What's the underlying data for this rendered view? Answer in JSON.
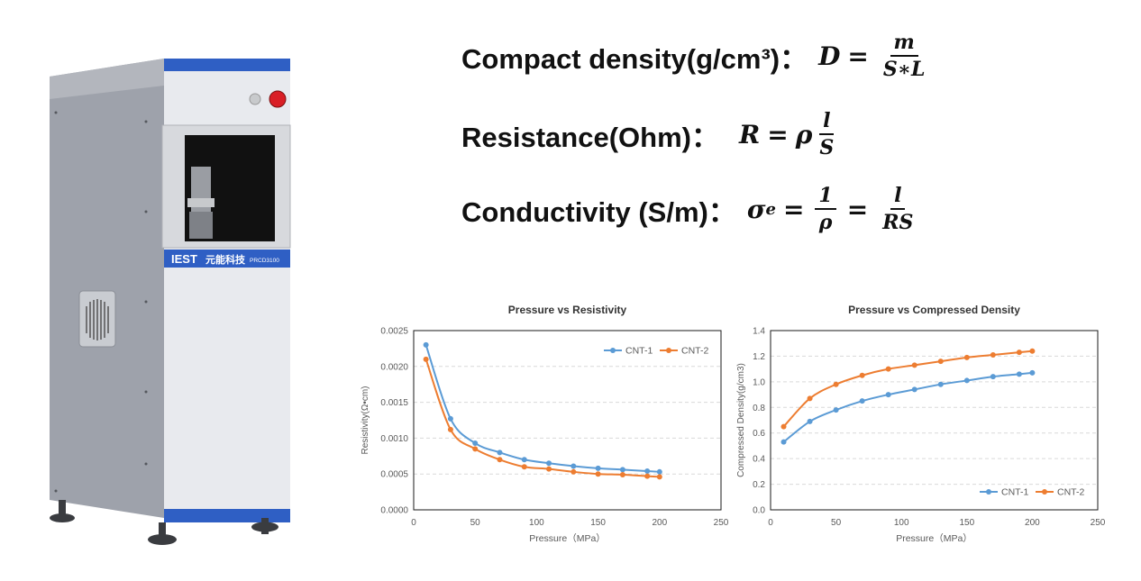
{
  "product": {
    "brand": "IEST",
    "brand_cn": "元能科技",
    "model": "PRCD3100"
  },
  "formulas": [
    {
      "label": "Compact density(g/cm³)：",
      "lhs": "D",
      "num": "m",
      "den": "S∗L"
    },
    {
      "label": "Resistance(Ohm)：",
      "lhs": "R",
      "mid": "ρ",
      "num": "l",
      "den": "S"
    },
    {
      "label": "Conductivity (S/m)：",
      "lhs": "σ",
      "lhs_sub": "e",
      "num": "1",
      "den": "ρ",
      "num2": "l",
      "den2": "RS"
    }
  ],
  "colors": {
    "cnt1": "#5b9bd5",
    "cnt2": "#ed7d31",
    "machine_blue": "#2f5fc4",
    "red_button": "#d91f26"
  },
  "chart_data": [
    {
      "type": "line",
      "title": "Pressure vs Resistivity",
      "xlabel": "Pressure（MPa）",
      "ylabel": "Resistivity(Ω•cm)",
      "xlim": [
        0,
        250
      ],
      "ylim": [
        0,
        0.0025
      ],
      "xticks": [
        "0",
        "50",
        "100",
        "150",
        "200",
        "250"
      ],
      "yticks": [
        "0.0000",
        "0.0005",
        "0.0010",
        "0.0015",
        "0.0020",
        "0.0025"
      ],
      "legend_position": "top-right",
      "grid": true,
      "x": [
        10,
        30,
        50,
        70,
        90,
        110,
        130,
        150,
        170,
        190,
        200
      ],
      "series": [
        {
          "name": "CNT-1",
          "values": [
            0.0023,
            0.00127,
            0.00093,
            0.0008,
            0.0007,
            0.00065,
            0.00061,
            0.00058,
            0.00056,
            0.00054,
            0.00053
          ]
        },
        {
          "name": "CNT-2",
          "values": [
            0.0021,
            0.00112,
            0.00085,
            0.0007,
            0.0006,
            0.00057,
            0.00053,
            0.0005,
            0.00049,
            0.00047,
            0.00046
          ]
        }
      ]
    },
    {
      "type": "line",
      "title": "Pressure vs Compressed Density",
      "xlabel": "Pressure（MPa）",
      "ylabel": "Compressed Density(g/cm3)",
      "xlim": [
        0,
        250
      ],
      "ylim": [
        0,
        1.4
      ],
      "xticks": [
        "0",
        "50",
        "100",
        "150",
        "200",
        "250"
      ],
      "yticks": [
        "0.0",
        "0.2",
        "0.4",
        "0.6",
        "0.8",
        "1.0",
        "1.2",
        "1.4"
      ],
      "legend_position": "bottom-right",
      "grid": true,
      "x": [
        10,
        30,
        50,
        70,
        90,
        110,
        130,
        150,
        170,
        190,
        200
      ],
      "series": [
        {
          "name": "CNT-1",
          "values": [
            0.53,
            0.69,
            0.78,
            0.85,
            0.9,
            0.94,
            0.98,
            1.01,
            1.04,
            1.06,
            1.07
          ]
        },
        {
          "name": "CNT-2",
          "values": [
            0.65,
            0.87,
            0.98,
            1.05,
            1.1,
            1.13,
            1.16,
            1.19,
            1.21,
            1.23,
            1.24
          ]
        }
      ]
    }
  ]
}
